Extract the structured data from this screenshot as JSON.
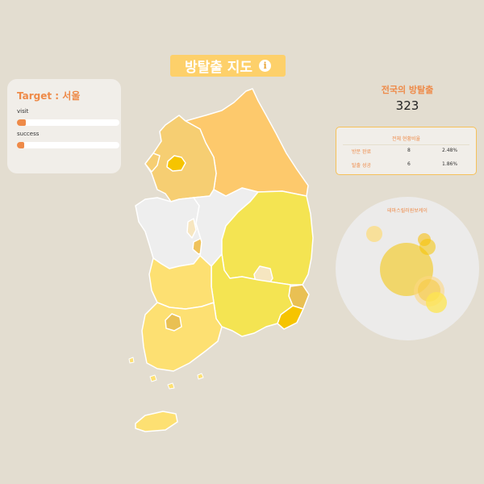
{
  "header": {
    "title": "방탈출 지도",
    "info_icon": "info-icon"
  },
  "target": {
    "label": "Target : 서울",
    "visit_label": "visit",
    "visit_value": 0.09,
    "success_label": "success",
    "success_value": 0.07
  },
  "nation": {
    "title": "전국의 방탈출",
    "total": "323"
  },
  "stats": {
    "title": "전체 현황비율",
    "rows": [
      {
        "label": "방문 완료",
        "count": "8",
        "rate": "2.48%"
      },
      {
        "label": "탈출 성공",
        "count": "6",
        "rate": "1.86%"
      }
    ]
  },
  "bubble_chart": {
    "title": "테마스릴러원보케이"
  },
  "colors": {
    "background": "#e3ddd0",
    "accent": "#ee8a48",
    "title_pill": "#fdd06a",
    "map_gray": "#eeeeee",
    "map_orange": "#fdc96c",
    "map_yellow": "#f4e452",
    "map_gold": "#f6c400"
  }
}
